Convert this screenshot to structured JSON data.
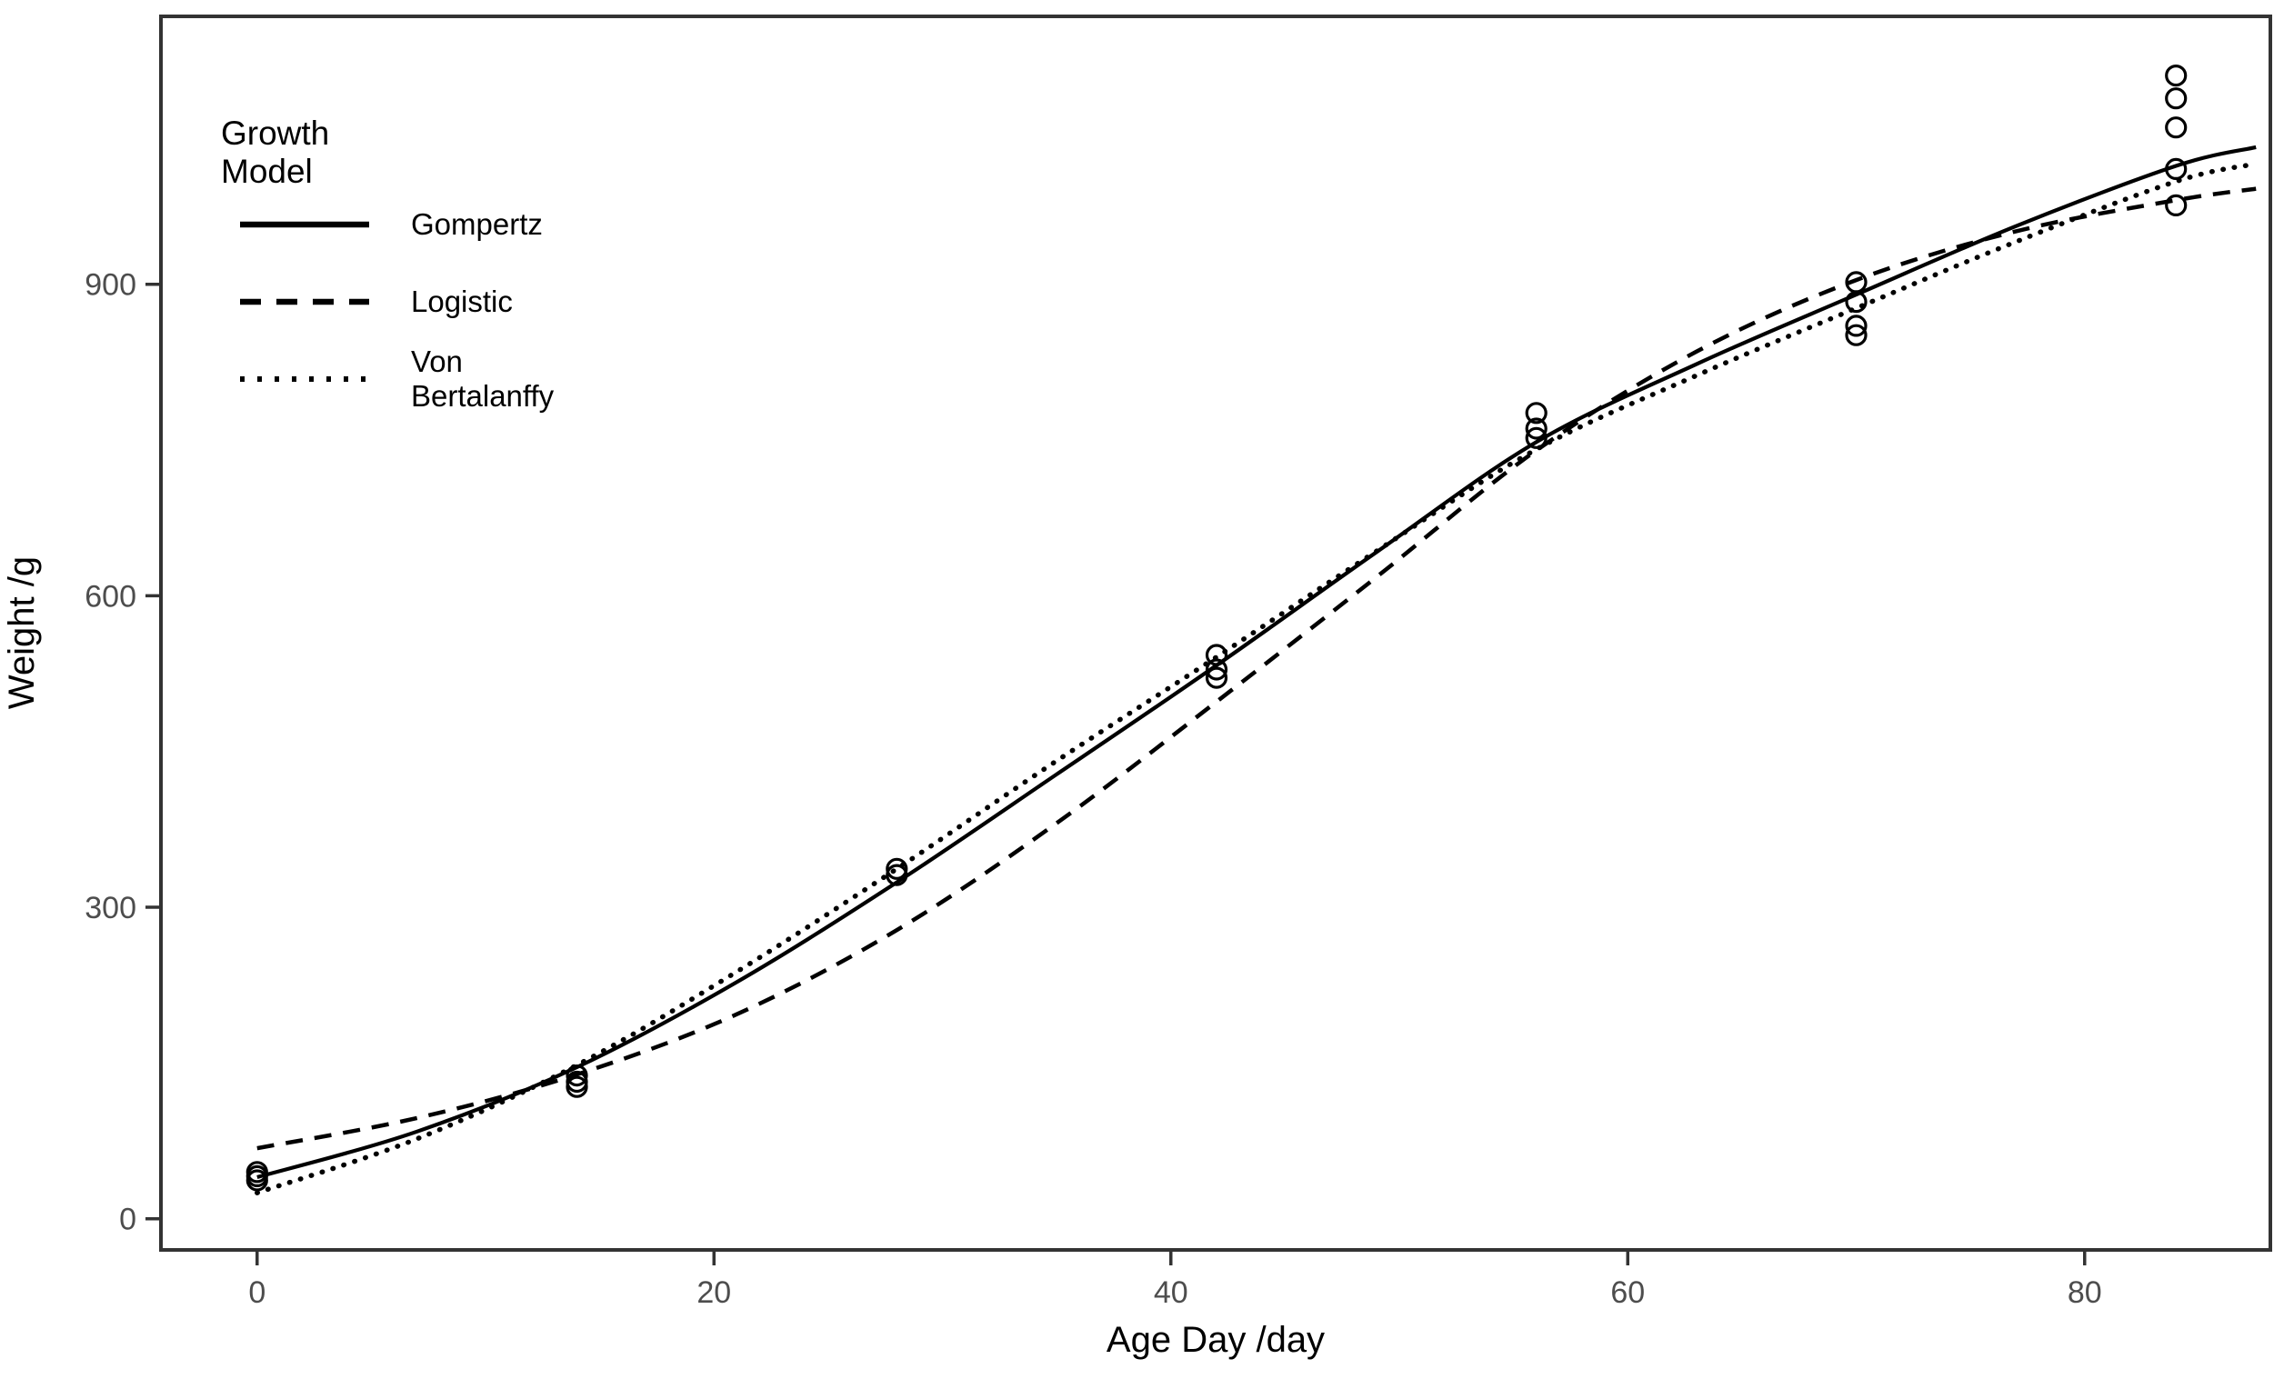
{
  "chart_data": {
    "type": "line",
    "title": "",
    "xlabel": "Age Day /day",
    "ylabel": "Weight /g",
    "xlim": [
      -4.21,
      88.13
    ],
    "ylim": [
      -30,
      1158
    ],
    "xticks": [
      0,
      20,
      40,
      60,
      80
    ],
    "yticks": [
      0,
      300,
      600,
      900
    ],
    "grid": "off",
    "legend": {
      "title": "Growth Model",
      "position": "top-left-inside"
    },
    "series": [
      {
        "name": "Gompertz",
        "style": "solid",
        "x": [
          0,
          7,
          14,
          21,
          28,
          35,
          42,
          49,
          56,
          63,
          70,
          77,
          84,
          87.5
        ],
        "y": [
          40,
          84,
          146,
          228,
          324,
          428,
          533,
          642,
          748,
          823,
          890,
          956,
          1014,
          1032
        ]
      },
      {
        "name": "Logistic",
        "style": "dashed",
        "x": [
          0,
          7,
          14,
          21,
          28,
          35,
          42,
          49,
          56,
          63,
          70,
          77,
          84,
          87.5
        ],
        "y": [
          68,
          97,
          139,
          197,
          278,
          381,
          498,
          618,
          740,
          835,
          904,
          951,
          981,
          992
        ]
      },
      {
        "name": "Von Bertalanffy",
        "style": "dotted",
        "x": [
          0,
          7,
          14,
          21,
          28,
          35,
          42,
          49,
          56,
          63,
          70,
          77,
          84,
          87.5
        ],
        "y": [
          25,
          77,
          148,
          238,
          337,
          441,
          541,
          643,
          741,
          812,
          877,
          941,
          999,
          1016
        ]
      }
    ],
    "scatter": {
      "marker": "open-circle",
      "points": [
        [
          0,
          37
        ],
        [
          0,
          41
        ],
        [
          0,
          45
        ],
        [
          14,
          127
        ],
        [
          14,
          132
        ],
        [
          14,
          138
        ],
        [
          28,
          331
        ],
        [
          28,
          337
        ],
        [
          42,
          521
        ],
        [
          42,
          529
        ],
        [
          42,
          543
        ],
        [
          56,
          752
        ],
        [
          56,
          761
        ],
        [
          56,
          776
        ],
        [
          70,
          851
        ],
        [
          70,
          860
        ],
        [
          70,
          883
        ],
        [
          70,
          902
        ],
        [
          84,
          976
        ],
        [
          84,
          1011
        ],
        [
          84,
          1051
        ],
        [
          84,
          1079
        ],
        [
          84,
          1101
        ]
      ]
    },
    "colors": {
      "line": "#000000",
      "marker": "#000000",
      "panel_border": "#333333",
      "tick": "#333333",
      "tick_label": "#4d4d4d",
      "axis_title": "#000000",
      "background": "#ffffff"
    }
  }
}
